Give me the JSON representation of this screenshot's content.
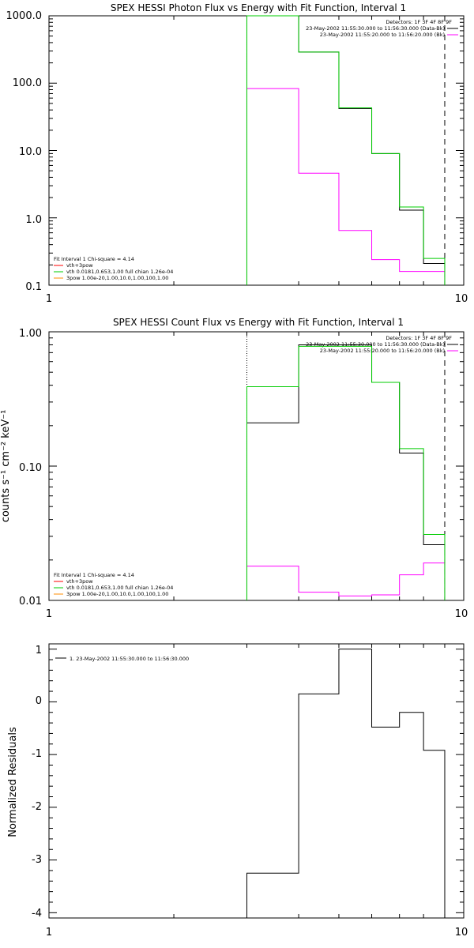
{
  "chart_data": [
    {
      "type": "line",
      "title": "SPEX HESSI Photon Flux vs Energy with Fit Function, Interval 1",
      "xlabel": "",
      "ylabel": "",
      "xscale": "log",
      "yscale": "log",
      "xlim": [
        1,
        10
      ],
      "ylim": [
        0.1,
        1000
      ],
      "x_ticks": [
        "1",
        "10"
      ],
      "y_ticks": [
        "0.1",
        "1.0",
        "10.0",
        "100.0",
        "1000.0"
      ],
      "detectors_text": "Detectors: 1F 3F 4F 8F 9F",
      "legend_right": [
        {
          "text": "23-May-2002 11:55:30.000 to 11:56:30.000 (Data-Bk)",
          "color": "#000000"
        },
        {
          "text": "23-May-2002 11:55:20.000 to 11:56:20.000 (Bk)",
          "color": "#ff00ff"
        }
      ],
      "legend_left": [
        {
          "text": "Fit Interval 1    Chi-square = 4.14",
          "color": null
        },
        {
          "text": "vth+3pow",
          "color": "#ff0000"
        },
        {
          "text": "vth 0.0181,0.653,1.00  full chian 1.26e-04",
          "color": "#00cc00"
        },
        {
          "text": "3pow 1.00e-20,1.00,10.0,1.00,100,1.00",
          "color": "#ff8c00"
        }
      ],
      "dotted_x": 3.0,
      "dashed_x": 9.0,
      "bin_edges": [
        3,
        4,
        5,
        6,
        7,
        8,
        9
      ],
      "series": [
        {
          "name": "23-May-2002 11:55:30.000 to 11:56:30.000 (Data-Bk)",
          "color": "#000000",
          "values": [
            1200,
            290,
            42,
            9.0,
            1.3,
            0.21
          ]
        },
        {
          "name": "23-May-2002 11:55:20.000 to 11:56:20.000 (Bk)",
          "color": "#ff00ff",
          "values": [
            83,
            4.6,
            0.65,
            0.24,
            0.16,
            0.16
          ]
        },
        {
          "name": "vth 0.0181,0.653,1.00  full chian 1.26e-04",
          "color": "#00cc00",
          "values": [
            1000,
            290,
            43,
            9.0,
            1.45,
            0.25
          ]
        }
      ]
    },
    {
      "type": "line",
      "title": "SPEX HESSI Count Flux vs Energy with Fit Function, Interval 1",
      "xlabel": "",
      "ylabel": "counts s⁻¹ cm⁻² keV⁻¹",
      "xscale": "log",
      "yscale": "log",
      "xlim": [
        1,
        10
      ],
      "ylim": [
        0.01,
        1.0
      ],
      "x_ticks": [
        "1",
        "10"
      ],
      "y_ticks": [
        "0.01",
        "0.10",
        "1.00"
      ],
      "detectors_text": "Detectors: 1F 3F 4F 8F 9F",
      "legend_right": [
        {
          "text": "23-May-2002 11:55:30.000 to 11:56:30.000 (Data-Bk)",
          "color": "#000000"
        },
        {
          "text": "23-May-2002 11:55:20.000 to 11:56:20.000 (Bk)",
          "color": "#ff00ff"
        }
      ],
      "legend_left": [
        {
          "text": "Fit Interval 1    Chi-square = 4.14",
          "color": null
        },
        {
          "text": "vth+3pow",
          "color": "#ff0000"
        },
        {
          "text": "vth 0.0181,0.653,1.00  full chian 1.26e-04",
          "color": "#00cc00"
        },
        {
          "text": "3pow 1.00e-20,1.00,10.0,1.00,100,1.00",
          "color": "#ff8c00"
        }
      ],
      "dotted_x": 3.0,
      "dashed_x": 9.0,
      "bin_edges": [
        3,
        4,
        5,
        6,
        7,
        8,
        9
      ],
      "series": [
        {
          "name": "23-May-2002 11:55:30.000 to 11:56:30.000 (Data-Bk)",
          "color": "#000000",
          "values": [
            0.21,
            0.8,
            0.8,
            0.42,
            0.125,
            0.026
          ]
        },
        {
          "name": "23-May-2002 11:55:20.000 to 11:56:20.000 (Bk)",
          "color": "#ff00ff",
          "values": [
            0.018,
            0.0115,
            0.0108,
            0.011,
            0.0155,
            0.019
          ]
        },
        {
          "name": "vth 0.0181,0.653,1.00  full chian 1.26e-04",
          "color": "#00cc00",
          "values": [
            0.39,
            0.78,
            0.78,
            0.42,
            0.135,
            0.031
          ]
        }
      ]
    },
    {
      "type": "line",
      "title": "",
      "xlabel": "",
      "ylabel": "Normalized Residuals",
      "xscale": "log",
      "yscale": "linear",
      "xlim": [
        1,
        10
      ],
      "ylim": [
        -4.1,
        1.1
      ],
      "x_ticks": [
        "1",
        "10"
      ],
      "y_ticks": [
        "-4",
        "-3",
        "-2",
        "-1",
        "0",
        "1"
      ],
      "legend_left": [
        {
          "text": "1. 23-May-2002 11:55:30.000 to 11:56:30.000",
          "color": "#000000"
        }
      ],
      "bin_edges": [
        3,
        4,
        5,
        6,
        7,
        8,
        9
      ],
      "series": [
        {
          "name": "1. 23-May-2002 11:55:30.000 to 11:56:30.000",
          "color": "#000000",
          "values": [
            -3.25,
            0.15,
            1.0,
            -0.48,
            -0.2,
            -0.92
          ]
        }
      ]
    }
  ]
}
